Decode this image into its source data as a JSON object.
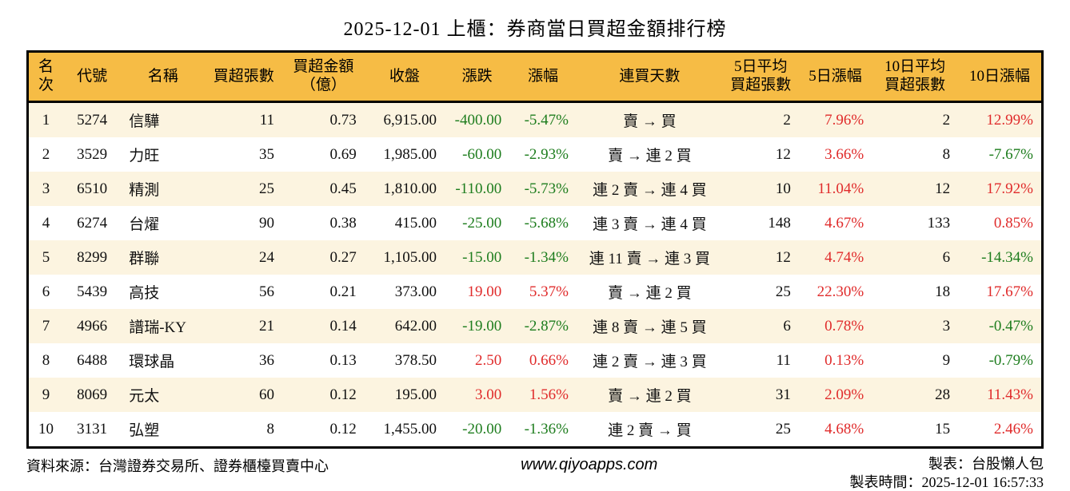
{
  "title": "2025-12-01 上櫃：券商當日買超金額排行榜",
  "colors": {
    "header_bg": "#f6bc45",
    "row_alt": "#fcf4e0",
    "up_red": "#e02b2b",
    "down_green": "#1e7d1e",
    "border": "#000000"
  },
  "table": {
    "columns": [
      {
        "key": "rank",
        "label": "名次",
        "align": "center",
        "width": "3.5%"
      },
      {
        "key": "code",
        "label": "代號",
        "align": "center",
        "width": "5.7%"
      },
      {
        "key": "name",
        "label": "名稱",
        "align": "left",
        "width": "8.3%"
      },
      {
        "key": "net_buy_lots",
        "label": "買超張數",
        "align": "right",
        "width": "7.6%"
      },
      {
        "key": "net_buy_amount",
        "label": "買超金額\n（億）",
        "align": "right",
        "width": "8.1%"
      },
      {
        "key": "close",
        "label": "收盤",
        "align": "right",
        "width": "7.9%"
      },
      {
        "key": "change",
        "label": "漲跌",
        "align": "right",
        "width": "6.4%"
      },
      {
        "key": "change_pct",
        "label": "漲幅",
        "align": "right",
        "width": "6.6%"
      },
      {
        "key": "streak",
        "label": "連買天數",
        "align": "center",
        "width": "14.4%"
      },
      {
        "key": "avg5_lots",
        "label": "5日平均\n買超張數",
        "align": "right",
        "width": "7.5%"
      },
      {
        "key": "chg5_pct",
        "label": "5日漲幅",
        "align": "right",
        "width": "7.2%"
      },
      {
        "key": "avg10_lots",
        "label": "10日平均\n買超張數",
        "align": "right",
        "width": "8.5%"
      },
      {
        "key": "chg10_pct",
        "label": "10日漲幅",
        "align": "right",
        "width": "8.3%"
      }
    ],
    "rows": [
      {
        "rank": "1",
        "code": "5274",
        "name": "信驊",
        "net_buy_lots": "11",
        "net_buy_amount": "0.73",
        "close": "6,915.00",
        "change": {
          "t": "-400.00",
          "dir": "down"
        },
        "change_pct": {
          "t": "-5.47%",
          "dir": "down"
        },
        "streak": "賣 → 買",
        "avg5_lots": "2",
        "chg5_pct": {
          "t": "7.96%",
          "dir": "up"
        },
        "avg10_lots": "2",
        "chg10_pct": {
          "t": "12.99%",
          "dir": "up"
        }
      },
      {
        "rank": "2",
        "code": "3529",
        "name": "力旺",
        "net_buy_lots": "35",
        "net_buy_amount": "0.69",
        "close": "1,985.00",
        "change": {
          "t": "-60.00",
          "dir": "down"
        },
        "change_pct": {
          "t": "-2.93%",
          "dir": "down"
        },
        "streak": "賣 → 連 2 買",
        "avg5_lots": "12",
        "chg5_pct": {
          "t": "3.66%",
          "dir": "up"
        },
        "avg10_lots": "8",
        "chg10_pct": {
          "t": "-7.67%",
          "dir": "down"
        }
      },
      {
        "rank": "3",
        "code": "6510",
        "name": "精測",
        "net_buy_lots": "25",
        "net_buy_amount": "0.45",
        "close": "1,810.00",
        "change": {
          "t": "-110.00",
          "dir": "down"
        },
        "change_pct": {
          "t": "-5.73%",
          "dir": "down"
        },
        "streak": "連 2 賣 → 連 4 買",
        "avg5_lots": "10",
        "chg5_pct": {
          "t": "11.04%",
          "dir": "up"
        },
        "avg10_lots": "12",
        "chg10_pct": {
          "t": "17.92%",
          "dir": "up"
        }
      },
      {
        "rank": "4",
        "code": "6274",
        "name": "台燿",
        "net_buy_lots": "90",
        "net_buy_amount": "0.38",
        "close": "415.00",
        "change": {
          "t": "-25.00",
          "dir": "down"
        },
        "change_pct": {
          "t": "-5.68%",
          "dir": "down"
        },
        "streak": "連 3 賣 → 連 4 買",
        "avg5_lots": "148",
        "chg5_pct": {
          "t": "4.67%",
          "dir": "up"
        },
        "avg10_lots": "133",
        "chg10_pct": {
          "t": "0.85%",
          "dir": "up"
        }
      },
      {
        "rank": "5",
        "code": "8299",
        "name": "群聯",
        "net_buy_lots": "24",
        "net_buy_amount": "0.27",
        "close": "1,105.00",
        "change": {
          "t": "-15.00",
          "dir": "down"
        },
        "change_pct": {
          "t": "-1.34%",
          "dir": "down"
        },
        "streak": "連 11 賣 → 連 3 買",
        "avg5_lots": "12",
        "chg5_pct": {
          "t": "4.74%",
          "dir": "up"
        },
        "avg10_lots": "6",
        "chg10_pct": {
          "t": "-14.34%",
          "dir": "down"
        }
      },
      {
        "rank": "6",
        "code": "5439",
        "name": "高技",
        "net_buy_lots": "56",
        "net_buy_amount": "0.21",
        "close": "373.00",
        "change": {
          "t": "19.00",
          "dir": "up"
        },
        "change_pct": {
          "t": "5.37%",
          "dir": "up"
        },
        "streak": "賣 → 連 2 買",
        "avg5_lots": "25",
        "chg5_pct": {
          "t": "22.30%",
          "dir": "up"
        },
        "avg10_lots": "18",
        "chg10_pct": {
          "t": "17.67%",
          "dir": "up"
        }
      },
      {
        "rank": "7",
        "code": "4966",
        "name": "譜瑞-KY",
        "net_buy_lots": "21",
        "net_buy_amount": "0.14",
        "close": "642.00",
        "change": {
          "t": "-19.00",
          "dir": "down"
        },
        "change_pct": {
          "t": "-2.87%",
          "dir": "down"
        },
        "streak": "連 8 賣 → 連 5 買",
        "avg5_lots": "6",
        "chg5_pct": {
          "t": "0.78%",
          "dir": "up"
        },
        "avg10_lots": "3",
        "chg10_pct": {
          "t": "-0.47%",
          "dir": "down"
        }
      },
      {
        "rank": "8",
        "code": "6488",
        "name": "環球晶",
        "net_buy_lots": "36",
        "net_buy_amount": "0.13",
        "close": "378.50",
        "change": {
          "t": "2.50",
          "dir": "up"
        },
        "change_pct": {
          "t": "0.66%",
          "dir": "up"
        },
        "streak": "連 2 賣 → 連 3 買",
        "avg5_lots": "11",
        "chg5_pct": {
          "t": "0.13%",
          "dir": "up"
        },
        "avg10_lots": "9",
        "chg10_pct": {
          "t": "-0.79%",
          "dir": "down"
        }
      },
      {
        "rank": "9",
        "code": "8069",
        "name": "元太",
        "net_buy_lots": "60",
        "net_buy_amount": "0.12",
        "close": "195.00",
        "change": {
          "t": "3.00",
          "dir": "up"
        },
        "change_pct": {
          "t": "1.56%",
          "dir": "up"
        },
        "streak": "賣 → 連 2 買",
        "avg5_lots": "31",
        "chg5_pct": {
          "t": "2.09%",
          "dir": "up"
        },
        "avg10_lots": "28",
        "chg10_pct": {
          "t": "11.43%",
          "dir": "up"
        }
      },
      {
        "rank": "10",
        "code": "3131",
        "name": "弘塑",
        "net_buy_lots": "8",
        "net_buy_amount": "0.12",
        "close": "1,455.00",
        "change": {
          "t": "-20.00",
          "dir": "down"
        },
        "change_pct": {
          "t": "-1.36%",
          "dir": "down"
        },
        "streak": "連 2 賣 → 買",
        "avg5_lots": "25",
        "chg5_pct": {
          "t": "4.68%",
          "dir": "up"
        },
        "avg10_lots": "15",
        "chg10_pct": {
          "t": "2.46%",
          "dir": "up"
        }
      }
    ]
  },
  "footer": {
    "source": "資料來源：台灣證券交易所、證券櫃檯買賣中心",
    "website": "www.qiyoapps.com",
    "maker": "製表：台股懶人包",
    "generated": "製表時間：2025-12-01 16:57:33"
  }
}
